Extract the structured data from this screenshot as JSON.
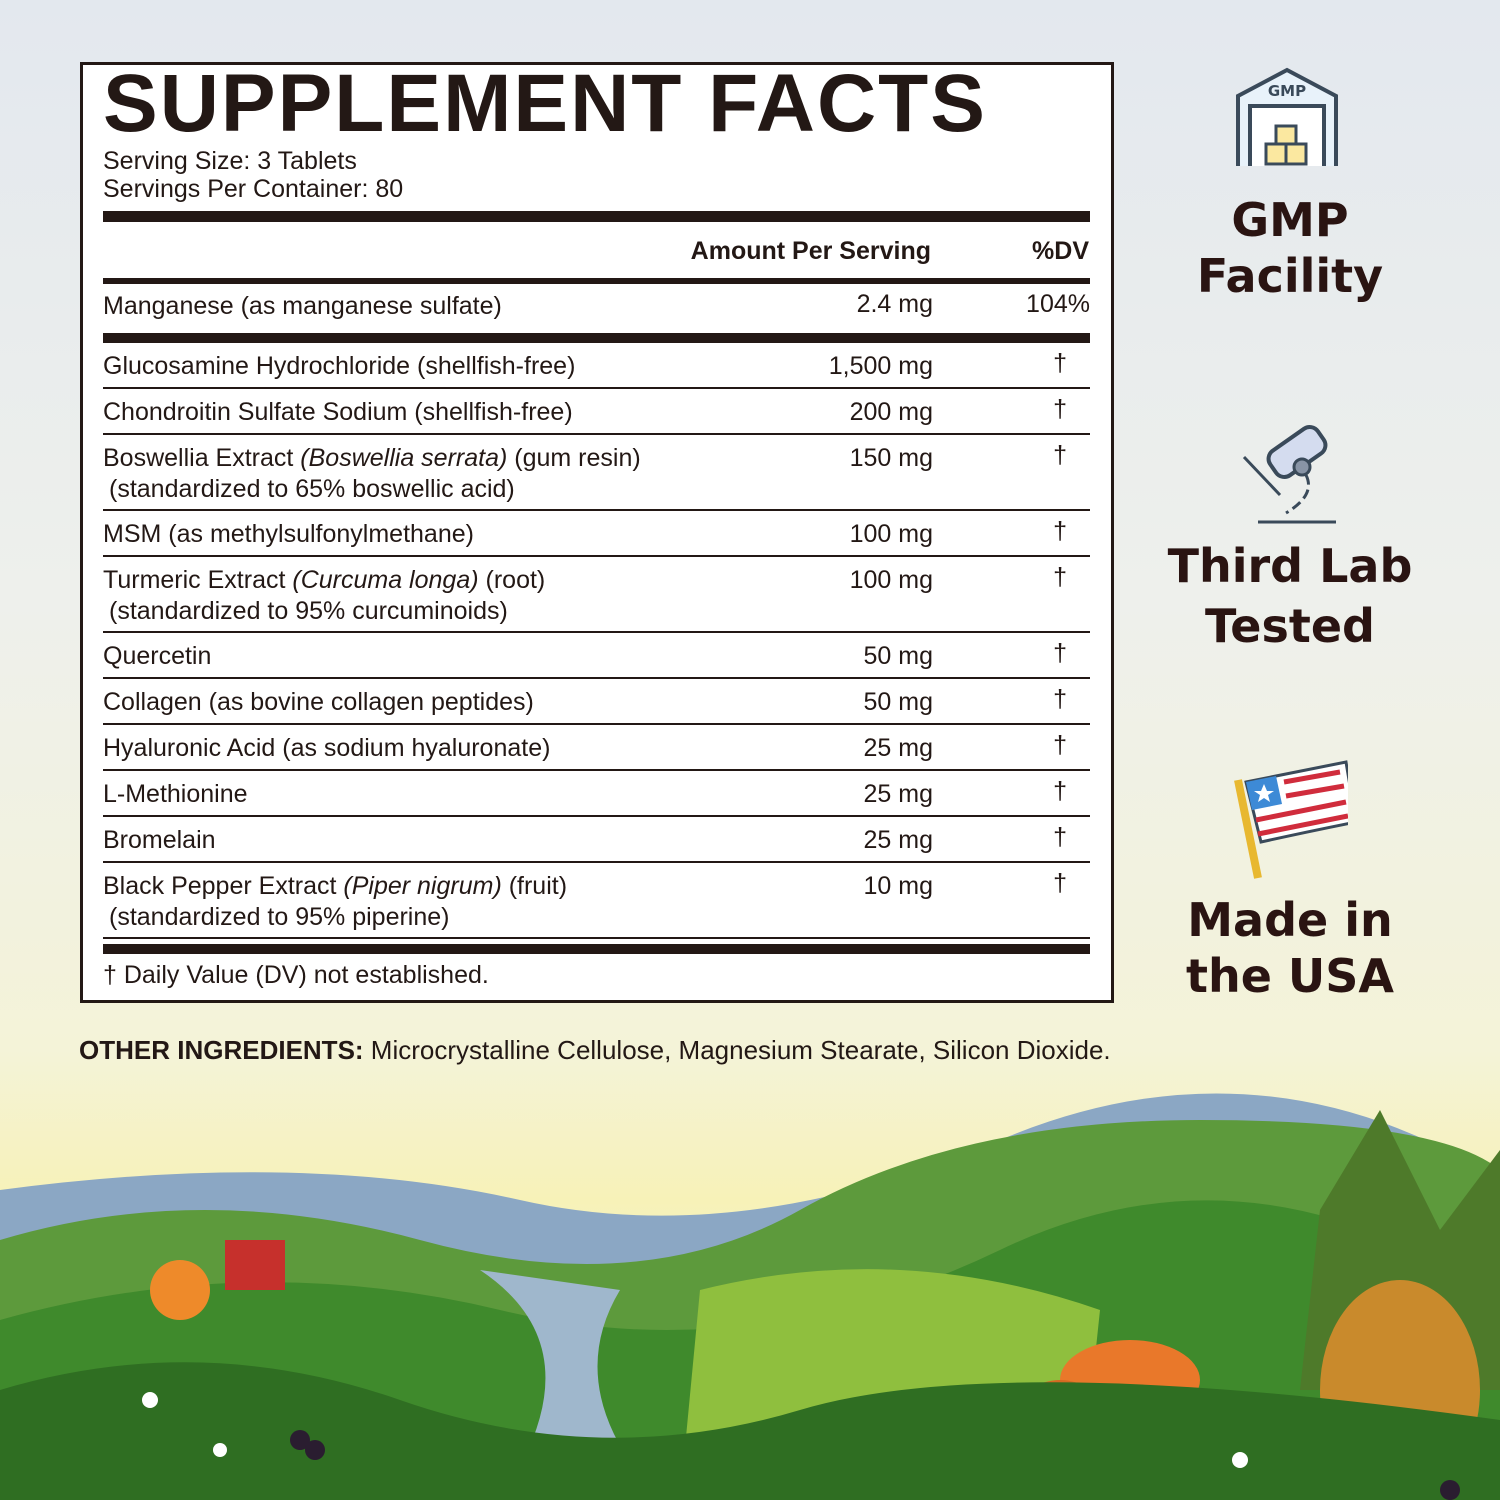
{
  "facts": {
    "title": "SUPPLEMENT FACTS",
    "serving_size": "Serving Size: 3 Tablets",
    "servings_per_container": "Servings Per Container: 80",
    "header_amount": "Amount Per Serving",
    "header_dv": "%DV",
    "rows": [
      {
        "name": "Manganese (as manganese sulfate)",
        "latin": "",
        "suffix": "",
        "line2": "",
        "amount": "2.4 mg",
        "dv": "104%"
      },
      {
        "name": "Glucosamine Hydrochloride (shellfish-free)",
        "latin": "",
        "suffix": "",
        "line2": "",
        "amount": "1,500 mg",
        "dv": "†"
      },
      {
        "name": "Chondroitin Sulfate Sodium (shellfish-free)",
        "latin": "",
        "suffix": "",
        "line2": "",
        "amount": "200 mg",
        "dv": "†"
      },
      {
        "name": "Boswellia Extract ",
        "latin": "(Boswellia serrata)",
        "suffix": " (gum resin)",
        "line2": "(standardized to 65% boswellic acid)",
        "amount": "150 mg",
        "dv": "†"
      },
      {
        "name": "MSM (as methylsulfonylmethane)",
        "latin": "",
        "suffix": "",
        "line2": "",
        "amount": "100 mg",
        "dv": "†"
      },
      {
        "name": "Turmeric Extract ",
        "latin": "(Curcuma longa)",
        "suffix": " (root)",
        "line2": "(standardized to 95% curcuminoids)",
        "amount": "100 mg",
        "dv": "†"
      },
      {
        "name": "Quercetin",
        "latin": "",
        "suffix": "",
        "line2": "",
        "amount": "50 mg",
        "dv": "†"
      },
      {
        "name": "Collagen (as bovine collagen peptides)",
        "latin": "",
        "suffix": "",
        "line2": "",
        "amount": "50 mg",
        "dv": "†"
      },
      {
        "name": "Hyaluronic Acid (as sodium hyaluronate)",
        "latin": "",
        "suffix": "",
        "line2": "",
        "amount": "25 mg",
        "dv": "†"
      },
      {
        "name": "L-Methionine",
        "latin": "",
        "suffix": "",
        "line2": "",
        "amount": "25 mg",
        "dv": "†"
      },
      {
        "name": "Bromelain",
        "latin": "",
        "suffix": "",
        "line2": "",
        "amount": "25 mg",
        "dv": "†"
      },
      {
        "name": "Black Pepper Extract ",
        "latin": "(Piper nigrum)",
        "suffix": " (fruit)",
        "line2": "(standardized to 95% piperine)",
        "amount": "10 mg",
        "dv": "†"
      }
    ],
    "footnote": "† Daily Value (DV) not established."
  },
  "other_ingredients": {
    "label": "OTHER INGREDIENTS:",
    "text": " Microcrystalline Cellulose, Magnesium Stearate, Silicon Dioxide."
  },
  "badges": [
    {
      "icon": "gmp-warehouse-icon",
      "icon_text": "GMP",
      "line1": "GMP",
      "line2": "Facility"
    },
    {
      "icon": "microscope-icon",
      "line1": "Third Lab",
      "line2": "Tested"
    },
    {
      "icon": "usa-flag-icon",
      "line1": "Made in",
      "line2": "the USA"
    }
  ]
}
